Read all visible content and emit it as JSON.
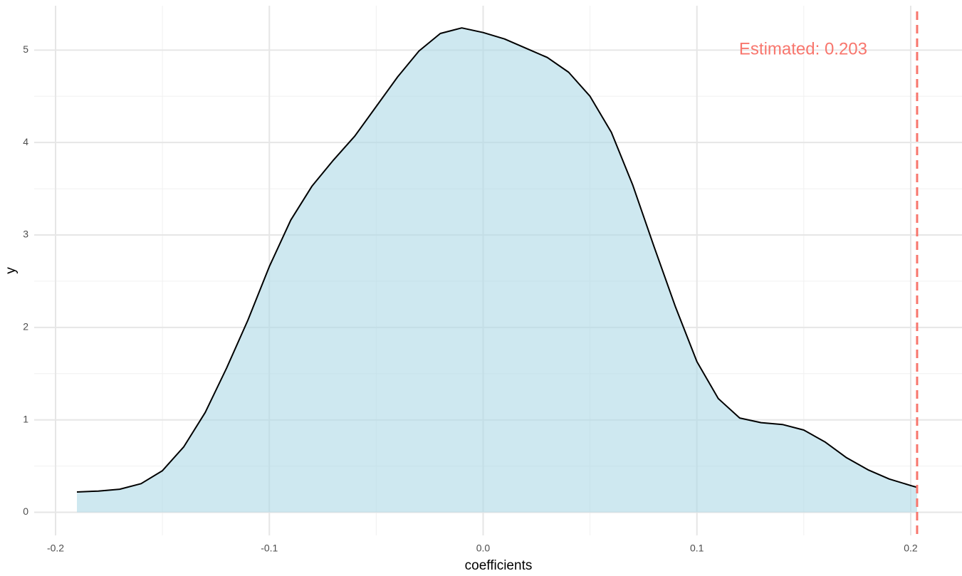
{
  "chart_data": {
    "type": "density",
    "x_label": "coefficients",
    "y_label": "y",
    "x": [
      -0.19,
      -0.18,
      -0.17,
      -0.16,
      -0.15,
      -0.14,
      -0.13,
      -0.12,
      -0.11,
      -0.1,
      -0.09,
      -0.08,
      -0.07,
      -0.06,
      -0.05,
      -0.04,
      -0.03,
      -0.02,
      -0.01,
      0.0,
      0.01,
      0.02,
      0.03,
      0.04,
      0.05,
      0.06,
      0.07,
      0.08,
      0.09,
      0.1,
      0.11,
      0.12,
      0.13,
      0.14,
      0.15,
      0.16,
      0.17,
      0.18,
      0.19,
      0.2,
      0.203
    ],
    "values": [
      0.22,
      0.23,
      0.25,
      0.31,
      0.45,
      0.71,
      1.08,
      1.56,
      2.08,
      2.66,
      3.16,
      3.53,
      3.81,
      4.07,
      4.39,
      4.71,
      4.99,
      5.18,
      5.24,
      5.19,
      5.12,
      5.02,
      4.92,
      4.76,
      4.5,
      4.11,
      3.54,
      2.87,
      2.22,
      1.63,
      1.23,
      1.02,
      0.97,
      0.95,
      0.89,
      0.76,
      0.59,
      0.46,
      0.36,
      0.29,
      0.27
    ],
    "fill_color": "#add8e6",
    "line_color": "#000000",
    "vline": 0.203,
    "vline_color": "#f8766d",
    "annotation": "Estimated: 0.203",
    "xlim": [
      -0.21,
      0.224
    ],
    "ylim": [
      -0.25,
      5.48
    ],
    "xticks": [
      -0.2,
      -0.1,
      {
        "value": 0,
        "label": "0.0"
      },
      0.1,
      0.2
    ],
    "yticks": [
      0,
      1,
      2,
      3,
      4,
      5
    ],
    "grid": true
  }
}
